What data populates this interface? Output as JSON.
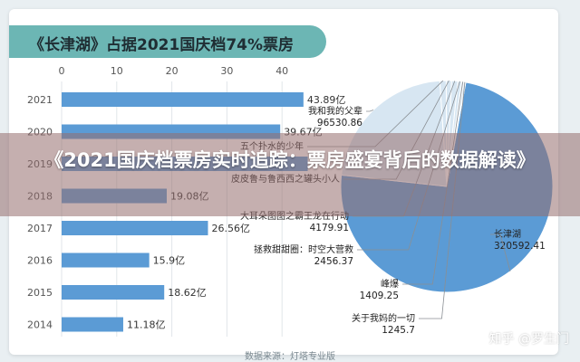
{
  "title": "《长津湖》占据2021国庆档74%票房",
  "overlay_title": "《2021国庆档票房实时追踪：票房盛宴背后的数据解读》",
  "source": "数据来源：灯塔专业版",
  "watermark": "知乎 @罗生门",
  "colors": {
    "bar": "#5b9bd5",
    "pie_main": "#5b9bd5",
    "pie_other": "#d7e6f2",
    "axis_text": "#555555",
    "title_bar": "#6cb6b4"
  },
  "chart_data": [
    {
      "type": "bar",
      "orientation": "horizontal",
      "categories": [
        "2021",
        "2020",
        "2019",
        "2018",
        "2017",
        "2016",
        "2015",
        "2014"
      ],
      "values": [
        43.89,
        39.67,
        44.66,
        19.08,
        26.56,
        15.9,
        18.62,
        11.18
      ],
      "data_labels": [
        "43.89亿",
        "39.67亿",
        "",
        "19.08亿",
        "26.56亿",
        "15.9亿",
        "18.62亿",
        "11.18亿"
      ],
      "xticks": [
        "0",
        "10",
        "20",
        "30",
        "40"
      ],
      "xlim": [
        0,
        50
      ],
      "grid": true
    },
    {
      "type": "pie",
      "slices": [
        {
          "label": "长津湖",
          "value": 320592.41,
          "value_text": "320592.41"
        },
        {
          "label": "我和我的父辈",
          "value": 96530.86,
          "value_text": "96530.86"
        },
        {
          "label": "五个扑水的少年",
          "value": 4179.91,
          "value_text": ""
        },
        {
          "label": "皮皮鲁与鲁西西之罐头小人",
          "value": 3500,
          "value_text": ""
        },
        {
          "label": "大耳朵图图之霸王龙在行动",
          "value": 4179.91,
          "value_text": "4179.91"
        },
        {
          "label": "拯救甜甜圈：时空大营救",
          "value": 2456.37,
          "value_text": "2456.37"
        },
        {
          "label": "峰爆",
          "value": 1409.25,
          "value_text": "1409.25"
        },
        {
          "label": "关于我妈的一切",
          "value": 1245.7,
          "value_text": "1245.7"
        }
      ]
    }
  ]
}
